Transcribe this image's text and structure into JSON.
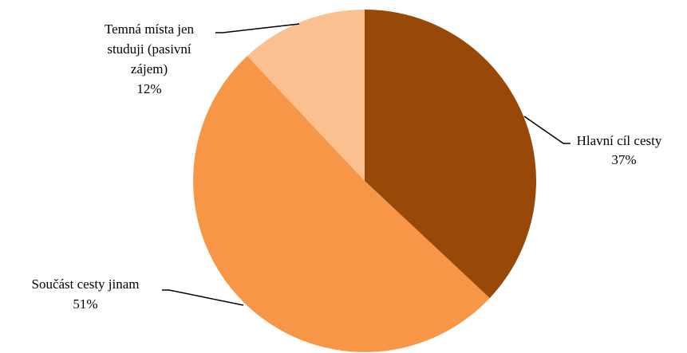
{
  "chart_data": {
    "type": "pie",
    "start_angle_deg": 0,
    "direction": "clockwise",
    "slices": [
      {
        "label_lines": [
          "Hlavní cíl cesty"
        ],
        "value": 37,
        "percent_label": "37%",
        "color": "#984807"
      },
      {
        "label_lines": [
          "Součást cesty jinam"
        ],
        "value": 51,
        "percent_label": "51%",
        "color": "#F79646"
      },
      {
        "label_lines": [
          "Temná místa jen",
          "studuji (pasivní",
          "zájem)"
        ],
        "value": 12,
        "percent_label": "12%",
        "color": "#FAC090"
      }
    ],
    "legend": "none"
  }
}
